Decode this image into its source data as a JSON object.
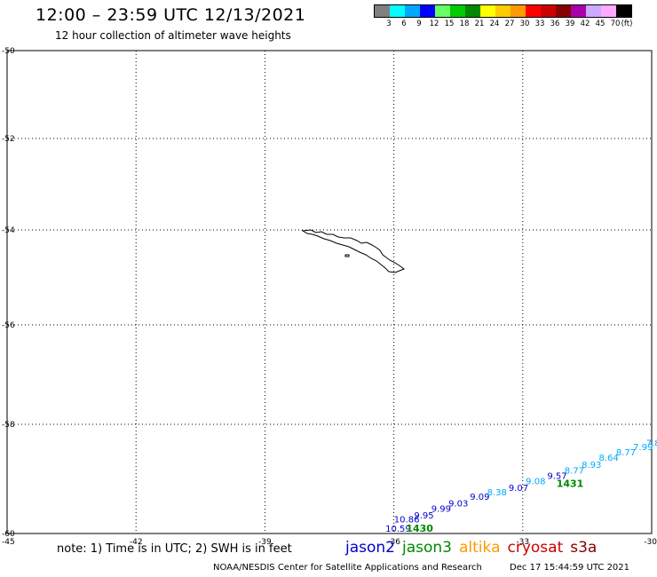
{
  "header": {
    "title": "12:00 – 23:59 UTC 12/13/2021",
    "subtitle": "12 hour collection of altimeter wave heights"
  },
  "legend": {
    "unit": "(ft)",
    "items": [
      {
        "label": "3",
        "color": "#808080"
      },
      {
        "label": "6",
        "color": "#00ffff"
      },
      {
        "label": "9",
        "color": "#00a8ff"
      },
      {
        "label": "12",
        "color": "#0000ff"
      },
      {
        "label": "15",
        "color": "#66ff66"
      },
      {
        "label": "18",
        "color": "#00cc00"
      },
      {
        "label": "21",
        "color": "#008800"
      },
      {
        "label": "24",
        "color": "#ffff00"
      },
      {
        "label": "27",
        "color": "#ffcc00"
      },
      {
        "label": "30",
        "color": "#ff9900"
      },
      {
        "label": "33",
        "color": "#ff0000"
      },
      {
        "label": "36",
        "color": "#cc0000"
      },
      {
        "label": "39",
        "color": "#880000"
      },
      {
        "label": "42",
        "color": "#aa00aa"
      },
      {
        "label": "45",
        "color": "#ccaaff"
      },
      {
        "label": "70",
        "color": "#ffaaff"
      },
      {
        "label": "",
        "color": "#000000"
      }
    ]
  },
  "axes": {
    "lat_ticks": [
      {
        "value": -50,
        "label": "-50"
      },
      {
        "value": -52,
        "label": "-52"
      },
      {
        "value": -54,
        "label": "-54"
      },
      {
        "value": -56,
        "label": "-56"
      },
      {
        "value": -58,
        "label": "-58"
      },
      {
        "value": -60,
        "label": "-60"
      }
    ],
    "lon_ticks": [
      {
        "value": -45,
        "label": "-45"
      },
      {
        "value": -42,
        "label": "-42"
      },
      {
        "value": -39,
        "label": "-39"
      },
      {
        "value": -36,
        "label": "-36"
      },
      {
        "value": -33,
        "label": "-33"
      },
      {
        "value": -30,
        "label": "-30"
      }
    ]
  },
  "track": {
    "times": [
      {
        "label": "1430",
        "lon": -35.4,
        "lat": -59.97,
        "color": "#008800"
      },
      {
        "label": "1431",
        "lon": -31.9,
        "lat": -59.15,
        "color": "#008800"
      }
    ],
    "readings": [
      {
        "label": "10.59",
        "lon": -35.9,
        "lat": -59.97,
        "color": "#0000cc"
      },
      {
        "label": "10.86",
        "lon": -35.7,
        "lat": -59.8,
        "color": "#0000cc"
      },
      {
        "label": "9.95",
        "lon": -35.3,
        "lat": -59.72,
        "color": "#0000cc"
      },
      {
        "label": "9.99",
        "lon": -34.9,
        "lat": -59.6,
        "color": "#0000cc"
      },
      {
        "label": "9.03",
        "lon": -34.5,
        "lat": -59.5,
        "color": "#0000cc"
      },
      {
        "label": "9.09",
        "lon": -34.0,
        "lat": -59.38,
        "color": "#0000cc"
      },
      {
        "label": "8.38",
        "lon": -33.6,
        "lat": -59.3,
        "color": "#00a8ff"
      },
      {
        "label": "9.07",
        "lon": -33.1,
        "lat": -59.22,
        "color": "#0000cc"
      },
      {
        "label": "9.08",
        "lon": -32.7,
        "lat": -59.1,
        "color": "#00a8ff"
      },
      {
        "label": "9.57",
        "lon": -32.2,
        "lat": -59.0,
        "color": "#0000cc"
      },
      {
        "label": "8.77",
        "lon": -31.8,
        "lat": -58.9,
        "color": "#00a8ff"
      },
      {
        "label": "8.93",
        "lon": -31.4,
        "lat": -58.8,
        "color": "#00a8ff"
      },
      {
        "label": "8.64",
        "lon": -31.0,
        "lat": -58.67,
        "color": "#00a8ff"
      },
      {
        "label": "8.77",
        "lon": -30.6,
        "lat": -58.57,
        "color": "#00a8ff"
      },
      {
        "label": "7.99",
        "lon": -30.2,
        "lat": -58.47,
        "color": "#00a8ff"
      },
      {
        "label": "7.88",
        "lon": -29.9,
        "lat": -58.4,
        "color": "#00a8ff"
      },
      {
        "label": "7",
        "lon": -29.8,
        "lat": -58.3,
        "color": "#00a8ff"
      }
    ]
  },
  "footer": {
    "note": "note:  1) Time is in UTC;  2) SWH is in feet",
    "satellites": [
      {
        "label": "jason2",
        "color": "#0000cc"
      },
      {
        "label": "jason3",
        "color": "#008800"
      },
      {
        "label": "altika",
        "color": "#ff9900"
      },
      {
        "label": "cryosat",
        "color": "#cc0000"
      },
      {
        "label": "s3a",
        "color": "#880000"
      }
    ],
    "credit": "NOAA/NESDIS Center for Satellite Applications and Research",
    "timestamp": "Dec 17 15:44:59 UTC 2021"
  }
}
